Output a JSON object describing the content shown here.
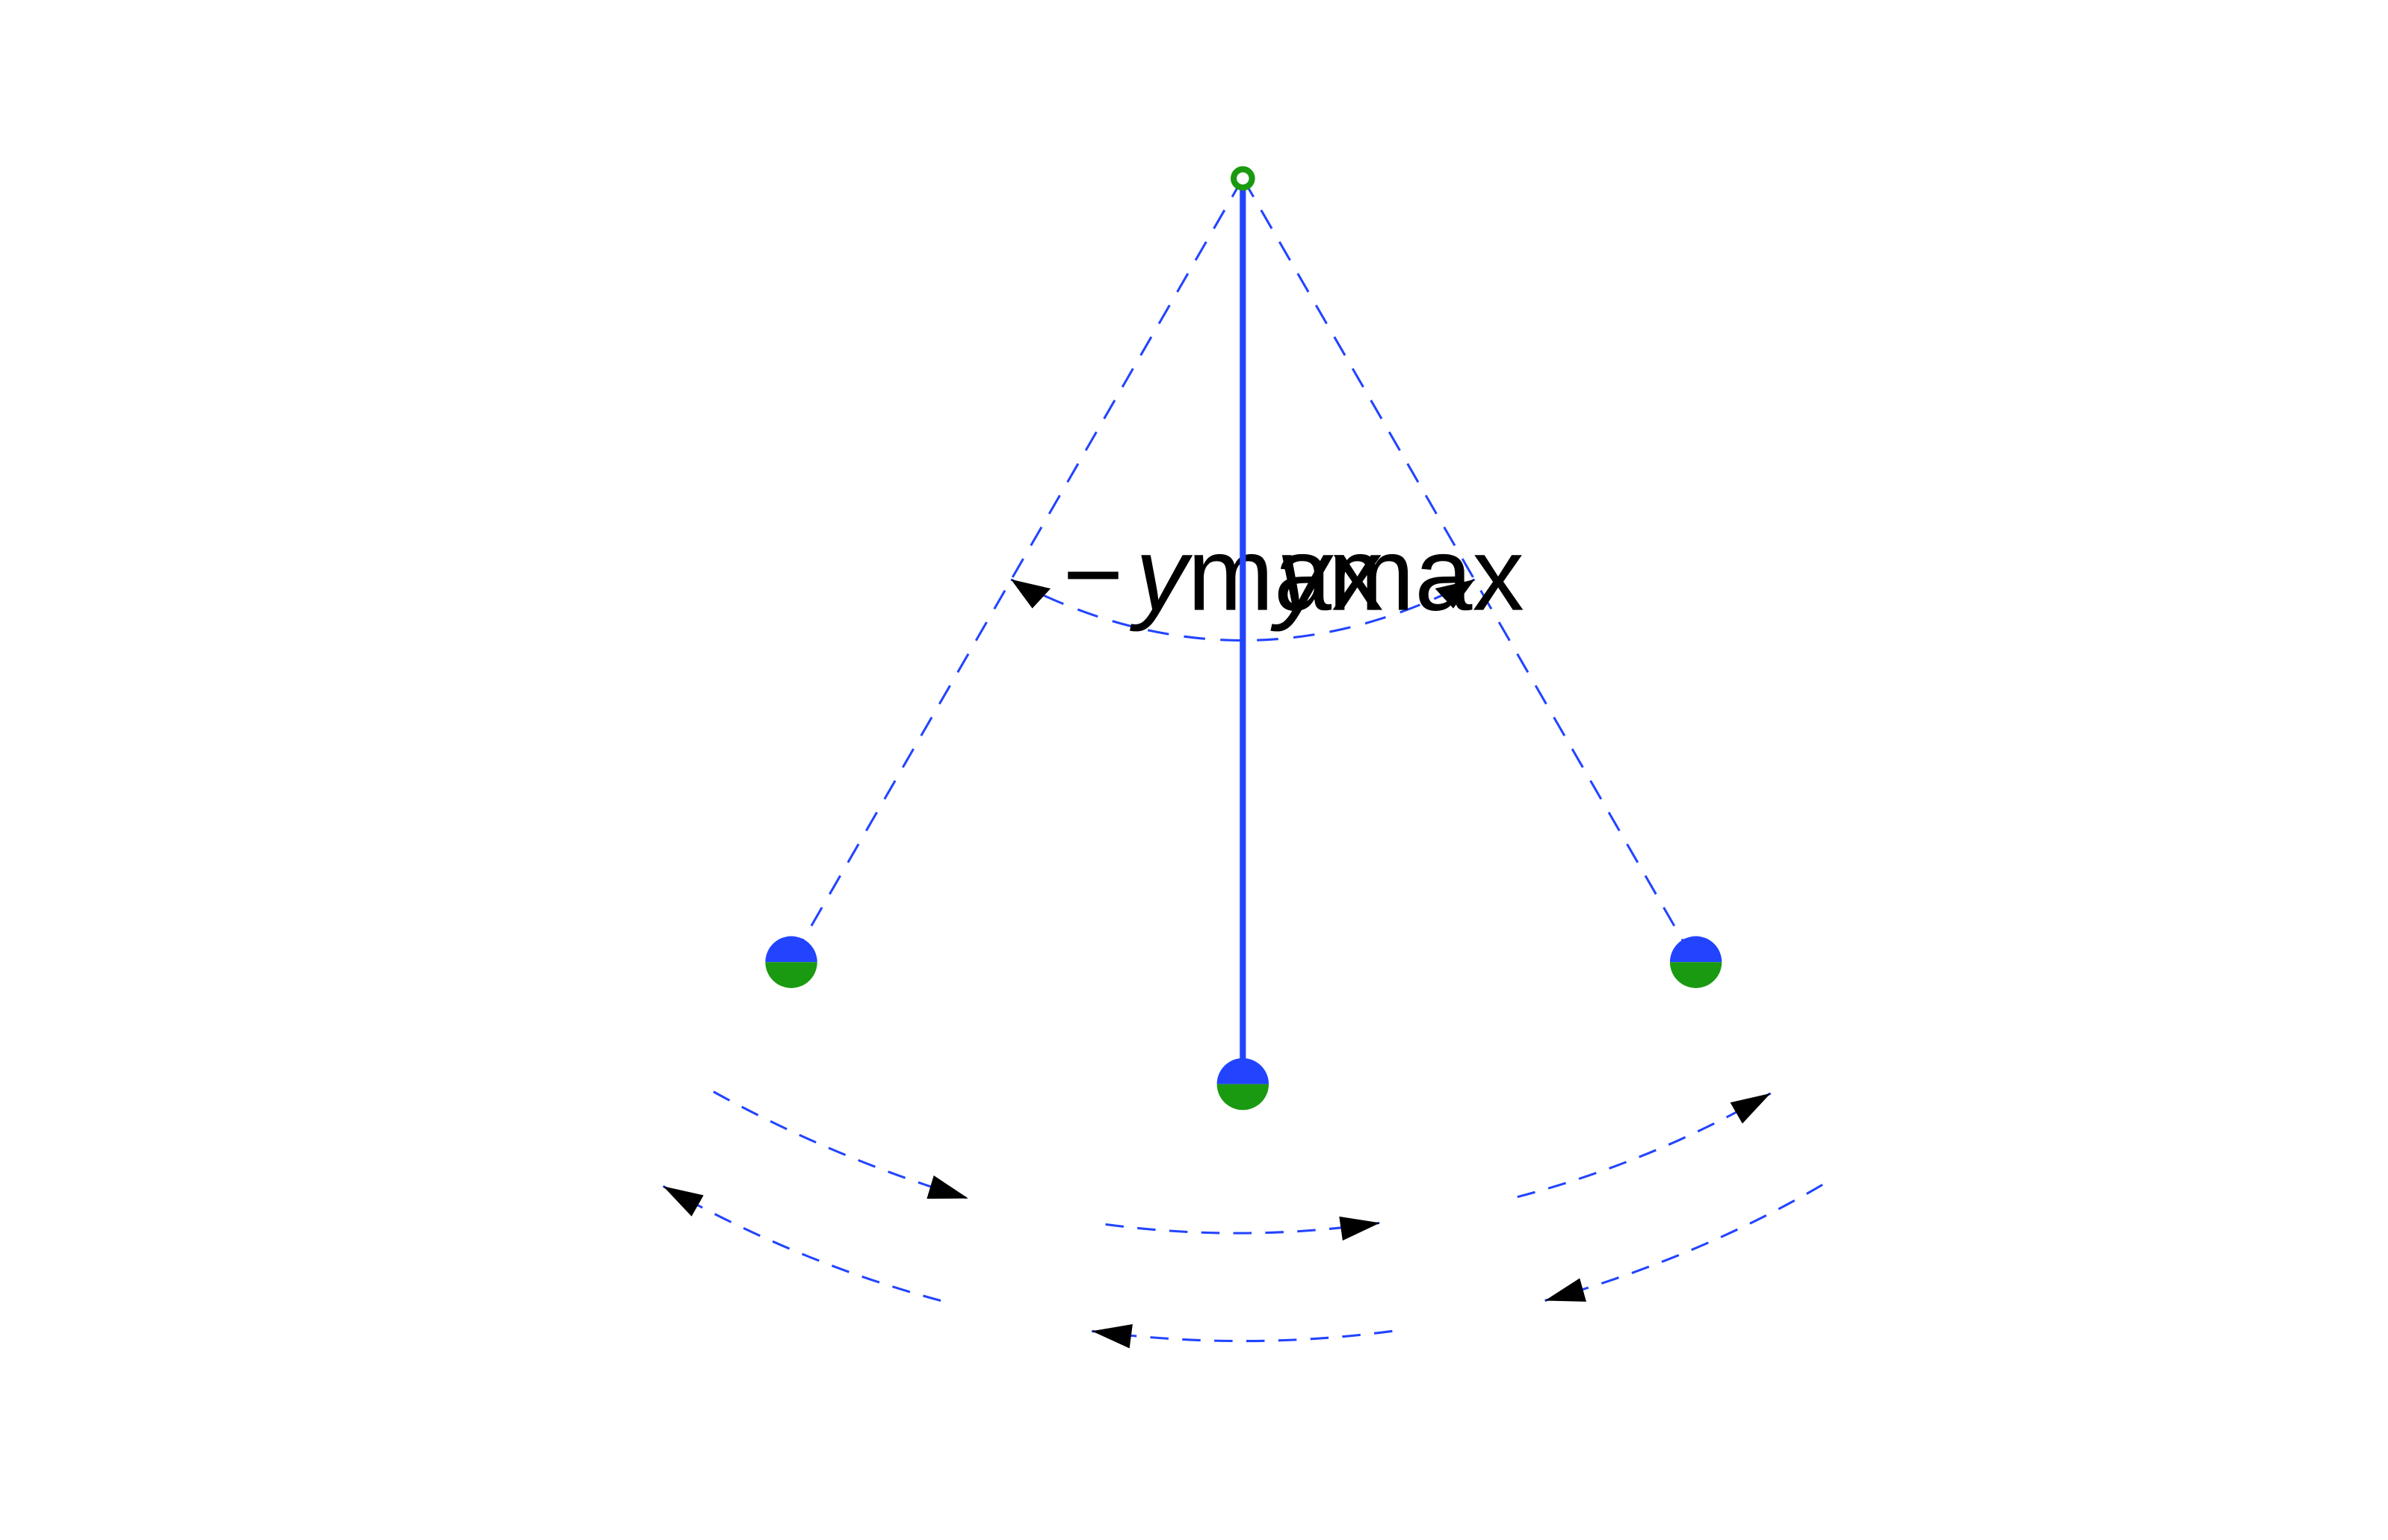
{
  "labels": {
    "neg_sign": "−",
    "var": "y",
    "sub": "max"
  },
  "colors": {
    "rod": "#2244ff",
    "bob_top": "#2244ff",
    "bob_bottom": "#1a9a10",
    "pivot": "#1a9a10",
    "guide_dash": "#2244ff",
    "arrow_head": "#000000",
    "background": "#ffffff"
  }
}
